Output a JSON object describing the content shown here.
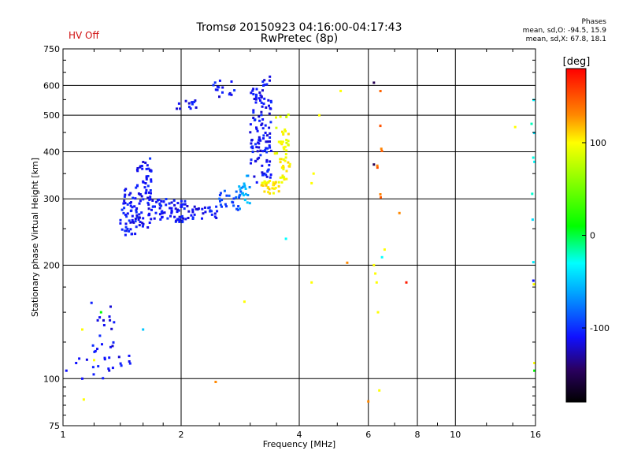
{
  "header": {
    "title_line1": "Tromsø 20150923 04:16:00-04:17:43",
    "title_line2": "RwPretec (8p)",
    "hv_status": "HV Off",
    "stats_title": "Phases",
    "stats_o": "mean, sd,O: -94.5, 15.9",
    "stats_x": "mean, sd,X: 67.8, 18.1"
  },
  "colors": {
    "hv_status": "#d01010",
    "grid": "#000000"
  },
  "chart_data": {
    "type": "scatter",
    "title": "Tromsø 20150923 04:16:00-04:17:43",
    "subtitle": "RwPretec (8p)",
    "xlabel": "Frequency [MHz]",
    "ylabel": "Stationary phase Virtual Height [km]",
    "x_scale": "log",
    "y_scale": "log",
    "xlim": [
      1,
      16
    ],
    "ylim": [
      75,
      750
    ],
    "grid": true,
    "x_ticks": [
      1,
      2,
      4,
      6,
      8,
      10,
      16
    ],
    "x_tick_labels": [
      "1",
      "2",
      "4",
      "6",
      "8",
      "10",
      "16"
    ],
    "y_ticks": [
      75,
      100,
      200,
      300,
      400,
      500,
      600,
      750
    ],
    "y_tick_labels": [
      "75",
      "100",
      "200",
      "300",
      "400",
      "500",
      "600",
      "750"
    ],
    "colorbar": {
      "label": "[deg]",
      "range": [
        -180,
        180
      ],
      "ticks": [
        -100,
        0,
        100
      ],
      "tick_labels": [
        "-100",
        "0",
        "100"
      ],
      "stops": [
        {
          "value": -180,
          "color": "#000000"
        },
        {
          "value": -145,
          "color": "#2a0060"
        },
        {
          "value": -110,
          "color": "#1010ff"
        },
        {
          "value": -60,
          "color": "#00aaff"
        },
        {
          "value": -30,
          "color": "#00ffff"
        },
        {
          "value": 10,
          "color": "#00ff00"
        },
        {
          "value": 100,
          "color": "#ffff00"
        },
        {
          "value": 130,
          "color": "#ff8800"
        },
        {
          "value": 180,
          "color": "#ff0000"
        }
      ]
    },
    "clusters": [
      {
        "x": [
          1.15,
          1.35
        ],
        "y": [
          95,
          170
        ],
        "n": 30,
        "phase": -110
      },
      {
        "x": [
          1.38,
          1.5
        ],
        "y": [
          103,
          115
        ],
        "n": 6,
        "phase": -110
      },
      {
        "x": [
          1.4,
          1.53
        ],
        "y": [
          240,
          320
        ],
        "n": 45,
        "phase": -110
      },
      {
        "x": [
          1.53,
          1.68
        ],
        "y": [
          250,
          390
        ],
        "n": 70,
        "phase": -110
      },
      {
        "x": [
          1.65,
          2.05
        ],
        "y": [
          260,
          300
        ],
        "n": 70,
        "phase": -110
      },
      {
        "x": [
          2.05,
          2.5
        ],
        "y": [
          265,
          290
        ],
        "n": 30,
        "phase": -110
      },
      {
        "x": [
          1.95,
          2.28
        ],
        "y": [
          520,
          550
        ],
        "n": 12,
        "phase": -110
      },
      {
        "x": [
          2.4,
          2.8
        ],
        "y": [
          555,
          625
        ],
        "n": 15,
        "phase": -110
      },
      {
        "x": [
          2.5,
          2.85
        ],
        "y": [
          280,
          315
        ],
        "n": 25,
        "phase": -90
      },
      {
        "x": [
          2.8,
          3.0
        ],
        "y": [
          280,
          350
        ],
        "n": 20,
        "phase": -60
      },
      {
        "x": [
          3.0,
          3.2
        ],
        "y": [
          330,
          600
        ],
        "n": 55,
        "phase": -110
      },
      {
        "x": [
          3.2,
          3.4
        ],
        "y": [
          340,
          640
        ],
        "n": 65,
        "phase": -110
      },
      {
        "x": [
          3.2,
          3.55
        ],
        "y": [
          310,
          335
        ],
        "n": 30,
        "phase": 105
      },
      {
        "x": [
          3.55,
          3.8
        ],
        "y": [
          330,
          460
        ],
        "n": 40,
        "phase": 100
      },
      {
        "x": [
          3.45,
          3.8
        ],
        "y": [
          380,
          510
        ],
        "n": 12,
        "phase": 95
      },
      {
        "x": [
          6.3,
          6.5
        ],
        "y": [
          300,
          600
        ],
        "n": 8,
        "phase": 140
      },
      {
        "x": [
          15.6,
          15.9
        ],
        "y": [
          180,
          580
        ],
        "n": 8,
        "phase": -30
      }
    ],
    "points": [
      {
        "x": 1.02,
        "y": 105,
        "phase": -110
      },
      {
        "x": 1.08,
        "y": 110,
        "phase": -110
      },
      {
        "x": 1.1,
        "y": 113,
        "phase": -110
      },
      {
        "x": 1.12,
        "y": 100,
        "phase": -110
      },
      {
        "x": 1.13,
        "y": 88,
        "phase": 100
      },
      {
        "x": 1.12,
        "y": 135,
        "phase": 100
      },
      {
        "x": 1.2,
        "y": 112,
        "phase": 100
      },
      {
        "x": 1.25,
        "y": 150,
        "phase": 10
      },
      {
        "x": 1.6,
        "y": 135,
        "phase": -50
      },
      {
        "x": 2.45,
        "y": 98,
        "phase": 130
      },
      {
        "x": 2.9,
        "y": 160,
        "phase": 100
      },
      {
        "x": 3.7,
        "y": 235,
        "phase": -30
      },
      {
        "x": 4.3,
        "y": 180,
        "phase": 100
      },
      {
        "x": 4.3,
        "y": 330,
        "phase": 100
      },
      {
        "x": 4.35,
        "y": 350,
        "phase": 100
      },
      {
        "x": 4.5,
        "y": 500,
        "phase": 100
      },
      {
        "x": 5.1,
        "y": 580,
        "phase": 100
      },
      {
        "x": 5.3,
        "y": 203,
        "phase": 130
      },
      {
        "x": 6.0,
        "y": 87,
        "phase": 130
      },
      {
        "x": 6.2,
        "y": 200,
        "phase": 100
      },
      {
        "x": 6.25,
        "y": 190,
        "phase": 100
      },
      {
        "x": 6.3,
        "y": 180,
        "phase": 100
      },
      {
        "x": 6.35,
        "y": 150,
        "phase": 100
      },
      {
        "x": 6.4,
        "y": 93,
        "phase": 100
      },
      {
        "x": 6.5,
        "y": 210,
        "phase": -30
      },
      {
        "x": 6.6,
        "y": 220,
        "phase": 100
      },
      {
        "x": 6.2,
        "y": 370,
        "phase": -150
      },
      {
        "x": 6.2,
        "y": 610,
        "phase": -150
      },
      {
        "x": 7.2,
        "y": 275,
        "phase": 130
      },
      {
        "x": 7.5,
        "y": 180,
        "phase": 170
      },
      {
        "x": 14.2,
        "y": 465,
        "phase": 100
      },
      {
        "x": 15.9,
        "y": 110,
        "phase": 100
      },
      {
        "x": 15.9,
        "y": 105,
        "phase": 10
      },
      {
        "x": 15.8,
        "y": 182,
        "phase": -110
      },
      {
        "x": 15.85,
        "y": 178,
        "phase": 100
      }
    ]
  }
}
